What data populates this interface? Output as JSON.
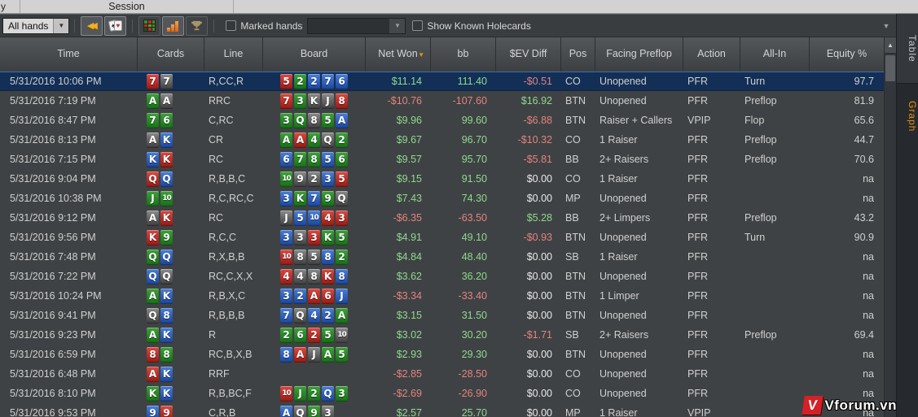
{
  "window": {
    "tab_partial": "y",
    "session_tab": "Session"
  },
  "toolbar": {
    "filter_value": "All hands",
    "marked_hands_label": "Marked hands",
    "marked_hands_filter_value": "",
    "show_known_holecards_label": "Show Known Holecards",
    "icons": [
      "rewind-icon",
      "playing-cards-icon",
      "grid-icon",
      "bar-chart-icon",
      "trophy-icon"
    ]
  },
  "side_tabs": {
    "table_label": "Table",
    "graph_label": "Graph",
    "graph_accent": "#e8930c"
  },
  "colors": {
    "positive": "#8fd98f",
    "negative": "#e4837f",
    "neutral": "#e9e9e9",
    "selection": "#132f56",
    "sort_arrow": "#e8930c",
    "suit_hearts": "#c13a33",
    "suit_diamonds": "#2f5fb8",
    "suit_clubs": "#2c8a2c",
    "suit_spades": "#5e5e5e"
  },
  "table": {
    "columns": [
      "Time",
      "Cards",
      "Line",
      "Board",
      "Net Won",
      "bb",
      "$EV Diff",
      "Pos",
      "Facing Preflop",
      "Action",
      "All-In",
      "Equity %"
    ],
    "sort": {
      "column": "Net Won",
      "direction": "desc"
    },
    "rows": [
      {
        "time": "5/31/2016 10:06 PM",
        "cards": [
          "7h",
          "7s"
        ],
        "line": "R,CC,R",
        "board": [
          "5h",
          "2c",
          "2d",
          "7d",
          "6d"
        ],
        "net_won": "$11.14",
        "bb": "111.40",
        "ev_diff": "-$0.51",
        "pos": "CO",
        "facing": "Unopened",
        "action": "PFR",
        "all_in": "Turn",
        "equity": "97.7",
        "selected": true
      },
      {
        "time": "5/31/2016 7:19 PM",
        "cards": [
          "Ac",
          "As"
        ],
        "line": "RRC",
        "board": [
          "7h",
          "3c",
          "Ks",
          "Js",
          "8h"
        ],
        "net_won": "-$10.76",
        "bb": "-107.60",
        "ev_diff": "$16.92",
        "pos": "BTN",
        "facing": "Unopened",
        "action": "PFR",
        "all_in": "Preflop",
        "equity": "81.9",
        "selected": false
      },
      {
        "time": "5/31/2016 8:47 PM",
        "cards": [
          "7c",
          "6c"
        ],
        "line": "C,RC",
        "board": [
          "3c",
          "Qc",
          "8s",
          "5c",
          "Ad"
        ],
        "net_won": "$9.96",
        "bb": "99.60",
        "ev_diff": "-$6.88",
        "pos": "BTN",
        "facing": "Raiser + Callers",
        "action": "VPIP",
        "all_in": "Flop",
        "equity": "65.6",
        "selected": false
      },
      {
        "time": "5/31/2016 8:13 PM",
        "cards": [
          "As",
          "Kd"
        ],
        "line": "CR",
        "board": [
          "Ac",
          "Ah",
          "4c",
          "Qs",
          "2c"
        ],
        "net_won": "$9.67",
        "bb": "96.70",
        "ev_diff": "-$10.32",
        "pos": "CO",
        "facing": "1 Raiser",
        "action": "PFR",
        "all_in": "Preflop",
        "equity": "44.7",
        "selected": false
      },
      {
        "time": "5/31/2016 7:15 PM",
        "cards": [
          "Kd",
          "Kh"
        ],
        "line": "RC",
        "board": [
          "6d",
          "7c",
          "8c",
          "5d",
          "6c"
        ],
        "net_won": "$9.57",
        "bb": "95.70",
        "ev_diff": "-$5.81",
        "pos": "BB",
        "facing": "2+ Raisers",
        "action": "PFR",
        "all_in": "Preflop",
        "equity": "70.6",
        "selected": false
      },
      {
        "time": "5/31/2016 9:04 PM",
        "cards": [
          "Qh",
          "Qd"
        ],
        "line": "R,B,B,C",
        "board": [
          "10c",
          "9s",
          "2s",
          "3d",
          "5h"
        ],
        "net_won": "$9.15",
        "bb": "91.50",
        "ev_diff": "$0.00",
        "pos": "CO",
        "facing": "1 Raiser",
        "action": "PFR",
        "all_in": "",
        "equity": "na",
        "selected": false
      },
      {
        "time": "5/31/2016 10:38 PM",
        "cards": [
          "Jc",
          "10c"
        ],
        "line": "R,C,RC,C",
        "board": [
          "3d",
          "Kc",
          "7d",
          "9c",
          "Qs"
        ],
        "net_won": "$7.43",
        "bb": "74.30",
        "ev_diff": "$0.00",
        "pos": "MP",
        "facing": "Unopened",
        "action": "PFR",
        "all_in": "",
        "equity": "na",
        "selected": false
      },
      {
        "time": "5/31/2016 9:12 PM",
        "cards": [
          "As",
          "Kh"
        ],
        "line": "RC",
        "board": [
          "Js",
          "5d",
          "10d",
          "4h",
          "3h"
        ],
        "net_won": "-$6.35",
        "bb": "-63.50",
        "ev_diff": "$5.28",
        "pos": "BB",
        "facing": "2+ Limpers",
        "action": "PFR",
        "all_in": "Preflop",
        "equity": "43.2",
        "selected": false
      },
      {
        "time": "5/31/2016 9:56 PM",
        "cards": [
          "Kh",
          "9c"
        ],
        "line": "R,C,C",
        "board": [
          "3d",
          "3s",
          "3h",
          "Kc",
          "5c"
        ],
        "net_won": "$4.91",
        "bb": "49.10",
        "ev_diff": "-$0.93",
        "pos": "BTN",
        "facing": "Unopened",
        "action": "PFR",
        "all_in": "Turn",
        "equity": "90.9",
        "selected": false
      },
      {
        "time": "5/31/2016 7:48 PM",
        "cards": [
          "Qc",
          "Qd"
        ],
        "line": "R,X,B,B",
        "board": [
          "10h",
          "8s",
          "5s",
          "8d",
          "2c"
        ],
        "net_won": "$4.84",
        "bb": "48.40",
        "ev_diff": "$0.00",
        "pos": "SB",
        "facing": "1 Raiser",
        "action": "PFR",
        "all_in": "",
        "equity": "na",
        "selected": false
      },
      {
        "time": "5/31/2016 7:22 PM",
        "cards": [
          "Qd",
          "Qs"
        ],
        "line": "RC,C,X,X",
        "board": [
          "4h",
          "4s",
          "8s",
          "Kh",
          "8d"
        ],
        "net_won": "$3.62",
        "bb": "36.20",
        "ev_diff": "$0.00",
        "pos": "BTN",
        "facing": "Unopened",
        "action": "PFR",
        "all_in": "",
        "equity": "na",
        "selected": false
      },
      {
        "time": "5/31/2016 10:24 PM",
        "cards": [
          "Ac",
          "Kd"
        ],
        "line": "R,B,X,C",
        "board": [
          "3d",
          "2d",
          "Ah",
          "6h",
          "Jd"
        ],
        "net_won": "-$3.34",
        "bb": "-33.40",
        "ev_diff": "$0.00",
        "pos": "BTN",
        "facing": "1 Limper",
        "action": "PFR",
        "all_in": "",
        "equity": "na",
        "selected": false
      },
      {
        "time": "5/31/2016 9:41 PM",
        "cards": [
          "Qs",
          "8d"
        ],
        "line": "R,B,B,B",
        "board": [
          "7d",
          "Qs",
          "4d",
          "2d",
          "Ac"
        ],
        "net_won": "$3.15",
        "bb": "31.50",
        "ev_diff": "$0.00",
        "pos": "BTN",
        "facing": "Unopened",
        "action": "PFR",
        "all_in": "",
        "equity": "na",
        "selected": false
      },
      {
        "time": "5/31/2016 9:23 PM",
        "cards": [
          "Ac",
          "Kd"
        ],
        "line": "R",
        "board": [
          "2c",
          "6c",
          "2h",
          "5c",
          "10s"
        ],
        "net_won": "$3.02",
        "bb": "30.20",
        "ev_diff": "-$1.71",
        "pos": "SB",
        "facing": "2+ Raisers",
        "action": "PFR",
        "all_in": "Preflop",
        "equity": "69.4",
        "selected": false
      },
      {
        "time": "5/31/2016 6:59 PM",
        "cards": [
          "8h",
          "8c"
        ],
        "line": "RC,B,X,B",
        "board": [
          "8d",
          "Ah",
          "Js",
          "Ac",
          "5c"
        ],
        "net_won": "$2.93",
        "bb": "29.30",
        "ev_diff": "$0.00",
        "pos": "BTN",
        "facing": "Unopened",
        "action": "PFR",
        "all_in": "",
        "equity": "na",
        "selected": false
      },
      {
        "time": "5/31/2016 6:48 PM",
        "cards": [
          "Ah",
          "Kd"
        ],
        "line": "RRF",
        "board": [],
        "net_won": "-$2.85",
        "bb": "-28.50",
        "ev_diff": "$0.00",
        "pos": "CO",
        "facing": "Unopened",
        "action": "PFR",
        "all_in": "",
        "equity": "na",
        "selected": false
      },
      {
        "time": "5/31/2016 8:10 PM",
        "cards": [
          "Kc",
          "Kd"
        ],
        "line": "R,B,BC,F",
        "board": [
          "10h",
          "Jc",
          "2c",
          "Qd",
          "3c"
        ],
        "net_won": "-$2.69",
        "bb": "-26.90",
        "ev_diff": "$0.00",
        "pos": "CO",
        "facing": "Unopened",
        "action": "PFR",
        "all_in": "",
        "equity": "na",
        "selected": false
      },
      {
        "time": "5/31/2016 9:53 PM",
        "cards": [
          "9d",
          "9h"
        ],
        "line": "C,R,B",
        "board": [
          "Ad",
          "Qs",
          "9c",
          "3s"
        ],
        "net_won": "$2.57",
        "bb": "25.70",
        "ev_diff": "$0.00",
        "pos": "MP",
        "facing": "1 Raiser",
        "action": "VPIP",
        "all_in": "",
        "equity": "na",
        "selected": false
      }
    ]
  },
  "watermark": {
    "text": "Vforum.vn",
    "logo_letter": "V"
  }
}
